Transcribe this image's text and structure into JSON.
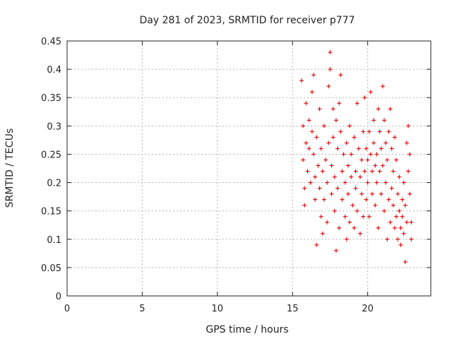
{
  "chart_data": {
    "type": "scatter",
    "title": "Day 281 of 2023, SRMTID for receiver p777",
    "xlabel": "GPS time / hours",
    "ylabel": "SRMTID / TECUs",
    "xlim": [
      0,
      24.2
    ],
    "ylim": [
      0,
      0.45
    ],
    "xticks": [
      0,
      5,
      10,
      15,
      20
    ],
    "yticks": [
      0,
      0.05,
      0.1,
      0.15,
      0.2,
      0.25,
      0.3,
      0.35,
      0.4,
      0.45
    ],
    "marker": "+",
    "color": "#e00000",
    "grid": true,
    "series": [
      {
        "name": "SRMTID",
        "points": [
          [
            15.6,
            0.38
          ],
          [
            15.7,
            0.3
          ],
          [
            15.7,
            0.24
          ],
          [
            15.8,
            0.19
          ],
          [
            15.8,
            0.16
          ],
          [
            15.9,
            0.34
          ],
          [
            15.9,
            0.27
          ],
          [
            16.0,
            0.22
          ],
          [
            16.1,
            0.31
          ],
          [
            16.1,
            0.26
          ],
          [
            16.2,
            0.2
          ],
          [
            16.3,
            0.29
          ],
          [
            16.3,
            0.36
          ],
          [
            16.4,
            0.39
          ],
          [
            16.4,
            0.25
          ],
          [
            16.5,
            0.21
          ],
          [
            16.5,
            0.17
          ],
          [
            16.6,
            0.28
          ],
          [
            16.6,
            0.09
          ],
          [
            16.7,
            0.23
          ],
          [
            16.8,
            0.33
          ],
          [
            16.8,
            0.19
          ],
          [
            16.9,
            0.14
          ],
          [
            16.9,
            0.26
          ],
          [
            17.0,
            0.22
          ],
          [
            17.0,
            0.11
          ],
          [
            17.1,
            0.3
          ],
          [
            17.1,
            0.17
          ],
          [
            17.2,
            0.24
          ],
          [
            17.3,
            0.2
          ],
          [
            17.3,
            0.13
          ],
          [
            17.4,
            0.37
          ],
          [
            17.4,
            0.27
          ],
          [
            17.5,
            0.43
          ],
          [
            17.5,
            0.4
          ],
          [
            17.6,
            0.23
          ],
          [
            17.6,
            0.18
          ],
          [
            17.7,
            0.33
          ],
          [
            17.7,
            0.28
          ],
          [
            17.8,
            0.21
          ],
          [
            17.8,
            0.15
          ],
          [
            17.9,
            0.31
          ],
          [
            17.9,
            0.08
          ],
          [
            18.0,
            0.26
          ],
          [
            18.0,
            0.19
          ],
          [
            18.1,
            0.34
          ],
          [
            18.1,
            0.12
          ],
          [
            18.2,
            0.39
          ],
          [
            18.2,
            0.29
          ],
          [
            18.3,
            0.22
          ],
          [
            18.3,
            0.17
          ],
          [
            18.4,
            0.25
          ],
          [
            18.5,
            0.14
          ],
          [
            18.5,
            0.2
          ],
          [
            18.6,
            0.27
          ],
          [
            18.6,
            0.1
          ],
          [
            18.7,
            0.23
          ],
          [
            18.7,
            0.18
          ],
          [
            18.8,
            0.3
          ],
          [
            18.8,
            0.13
          ],
          [
            18.9,
            0.25
          ],
          [
            18.9,
            0.21
          ],
          [
            19.0,
            0.16
          ],
          [
            19.1,
            0.28
          ],
          [
            19.1,
            0.12
          ],
          [
            19.2,
            0.22
          ],
          [
            19.2,
            0.19
          ],
          [
            19.3,
            0.34
          ],
          [
            19.3,
            0.15
          ],
          [
            19.4,
            0.26
          ],
          [
            19.5,
            0.21
          ],
          [
            19.5,
            0.11
          ],
          [
            19.6,
            0.24
          ],
          [
            19.6,
            0.18
          ],
          [
            19.7,
            0.29
          ],
          [
            19.7,
            0.14
          ],
          [
            19.8,
            0.22
          ],
          [
            19.8,
            0.35
          ],
          [
            19.9,
            0.26
          ],
          [
            19.9,
            0.17
          ],
          [
            20.0,
            0.24
          ],
          [
            20.0,
            0.2
          ],
          [
            20.1,
            0.29
          ],
          [
            20.1,
            0.14
          ],
          [
            20.2,
            0.36
          ],
          [
            20.2,
            0.25
          ],
          [
            20.3,
            0.22
          ],
          [
            20.3,
            0.18
          ],
          [
            20.4,
            0.31
          ],
          [
            20.4,
            0.27
          ],
          [
            20.5,
            0.23
          ],
          [
            20.5,
            0.16
          ],
          [
            20.6,
            0.2
          ],
          [
            20.6,
            0.25
          ],
          [
            20.7,
            0.33
          ],
          [
            20.7,
            0.12
          ],
          [
            20.8,
            0.22
          ],
          [
            20.8,
            0.29
          ],
          [
            20.9,
            0.18
          ],
          [
            20.9,
            0.26
          ],
          [
            21.0,
            0.37
          ],
          [
            21.0,
            0.23
          ],
          [
            21.1,
            0.31
          ],
          [
            21.1,
            0.15
          ],
          [
            21.2,
            0.27
          ],
          [
            21.2,
            0.2
          ],
          [
            21.3,
            0.24
          ],
          [
            21.3,
            0.1
          ],
          [
            21.4,
            0.29
          ],
          [
            21.4,
            0.17
          ],
          [
            21.5,
            0.33
          ],
          [
            21.5,
            0.13
          ],
          [
            21.6,
            0.26
          ],
          [
            21.6,
            0.19
          ],
          [
            21.7,
            0.16
          ],
          [
            21.7,
            0.22
          ],
          [
            21.8,
            0.12
          ],
          [
            21.8,
            0.28
          ],
          [
            21.9,
            0.14
          ],
          [
            21.9,
            0.24
          ],
          [
            22.0,
            0.1
          ],
          [
            22.0,
            0.18
          ],
          [
            22.1,
            0.15
          ],
          [
            22.1,
            0.21
          ],
          [
            22.2,
            0.12
          ],
          [
            22.2,
            0.09
          ],
          [
            22.3,
            0.17
          ],
          [
            22.3,
            0.14
          ],
          [
            22.4,
            0.2
          ],
          [
            22.4,
            0.11
          ],
          [
            22.5,
            0.06
          ],
          [
            22.5,
            0.16
          ],
          [
            22.6,
            0.13
          ],
          [
            22.6,
            0.27
          ],
          [
            22.7,
            0.3
          ],
          [
            22.7,
            0.22
          ],
          [
            22.8,
            0.18
          ],
          [
            22.8,
            0.25
          ],
          [
            22.9,
            0.13
          ],
          [
            22.9,
            0.1
          ]
        ]
      }
    ]
  }
}
